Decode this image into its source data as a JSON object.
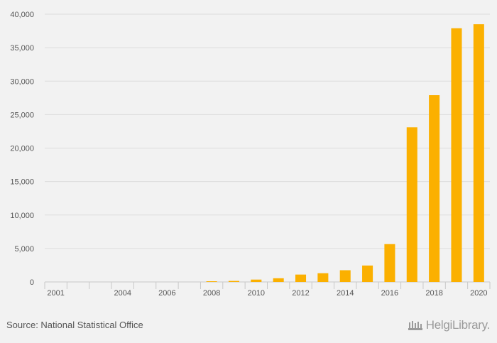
{
  "chart_data": {
    "type": "bar",
    "title": "",
    "xlabel": "",
    "ylabel": "",
    "categories": [
      "2001",
      "2002",
      "2003",
      "2004",
      "2005",
      "2006",
      "2007",
      "2008",
      "2009",
      "2010",
      "2011",
      "2012",
      "2013",
      "2014",
      "2015",
      "2016",
      "2017",
      "2018",
      "2019",
      "2020"
    ],
    "x_tick_labels": [
      "2001",
      "2004",
      "2006",
      "2008",
      "2010",
      "2012",
      "2014",
      "2016",
      "2018",
      "2020"
    ],
    "values": [
      0,
      0,
      0,
      0,
      0,
      0,
      0,
      100,
      150,
      350,
      550,
      1100,
      1300,
      1750,
      2450,
      5650,
      23100,
      27900,
      37900,
      38500
    ],
    "ylim": [
      0,
      40000
    ],
    "y_ticks": [
      0,
      5000,
      10000,
      15000,
      20000,
      25000,
      30000,
      35000,
      40000
    ],
    "y_tick_labels": [
      "0",
      "5,000",
      "10,000",
      "15,000",
      "20,000",
      "25,000",
      "30,000",
      "35,000",
      "40,000"
    ],
    "bar_color": "#fbb000",
    "grid": true
  },
  "footer": {
    "source": "Source: National Statistical Office",
    "brand": "HelgiLibrary."
  }
}
